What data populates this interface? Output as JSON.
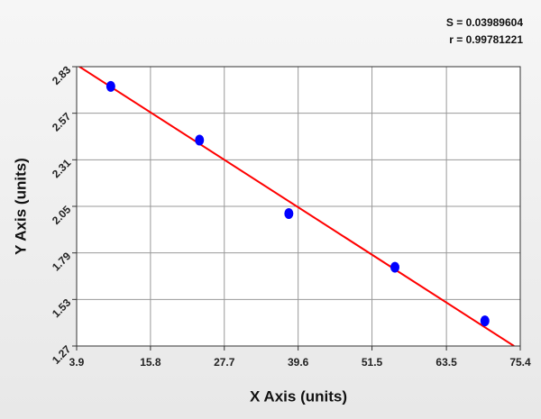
{
  "chart_data": {
    "type": "scatter",
    "x_label": "X Axis (units)",
    "y_label": "Y Axis (units)",
    "annotations": [
      "S = 0.03989604",
      "r = 0.99781221"
    ],
    "xlim": [
      3.9,
      75.4
    ],
    "ylim": [
      1.27,
      2.83
    ],
    "xticks": [
      3.9,
      15.8,
      27.7,
      39.6,
      51.5,
      63.5,
      75.4
    ],
    "yticks": [
      1.27,
      1.53,
      1.79,
      2.05,
      2.31,
      2.57,
      2.83
    ],
    "grid": true,
    "series": [
      {
        "type": "scatter",
        "color": "#0000ff",
        "x": [
          9.4,
          23.7,
          38.1,
          55.2,
          69.7
        ],
        "values": [
          2.72,
          2.42,
          2.01,
          1.71,
          1.41
        ]
      },
      {
        "type": "line",
        "color": "#ff0000",
        "x": [
          3.9,
          74.4
        ],
        "values": [
          2.84,
          1.27
        ]
      }
    ]
  }
}
